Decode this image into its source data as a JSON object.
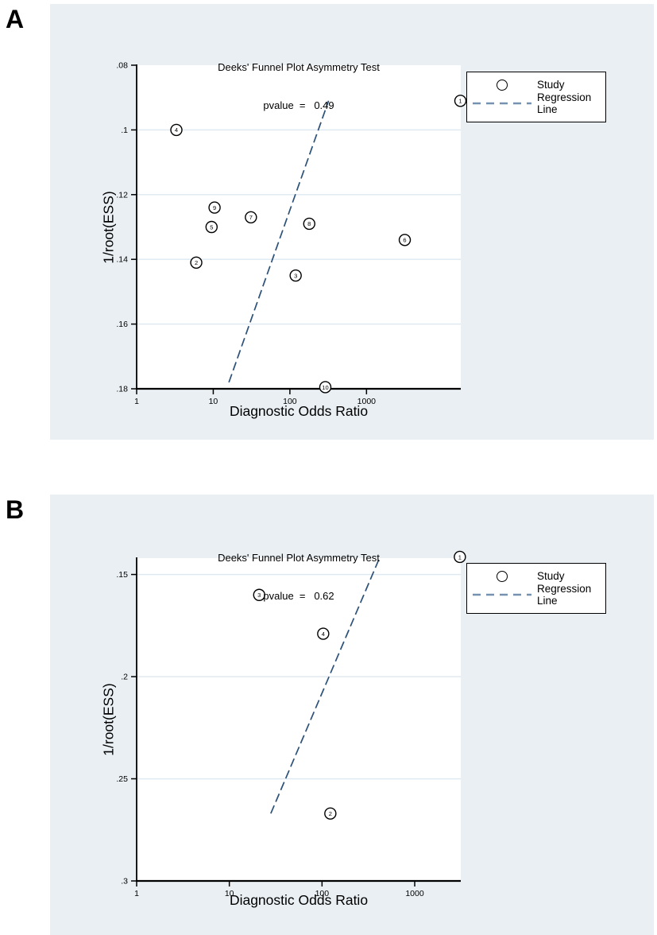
{
  "page": {
    "panel_a_label": "A",
    "panel_b_label": "B"
  },
  "colors": {
    "panel_bg": "#e9eff3",
    "plot_bg": "#ffffff",
    "grid": "#dde8f0",
    "axis": "#000000",
    "regression_line": "#2c5178",
    "legend_dash": "#7593b1"
  },
  "chart_data": [
    {
      "id": "A",
      "type": "scatter",
      "title": "Deeks' Funnel Plot Asymmetry Test",
      "subtitle": "pvalue  =   0.49",
      "pvalue": 0.49,
      "xlabel": "Diagnostic Odds Ratio",
      "ylabel": "1/root(ESS)",
      "x_scale": "log",
      "x_range": [
        1,
        17000
      ],
      "x_ticks": [
        {
          "v": 1,
          "label": "1"
        },
        {
          "v": 10,
          "label": "10"
        },
        {
          "v": 100,
          "label": "100"
        },
        {
          "v": 1000,
          "label": "1000"
        }
      ],
      "y_axis_top_to_bottom": true,
      "y_range": [
        0.08,
        0.18
      ],
      "y_ticks": [
        {
          "v": 0.08,
          "label": ".08",
          "grid": false
        },
        {
          "v": 0.1,
          "label": ".1",
          "grid": true
        },
        {
          "v": 0.12,
          "label": ".12",
          "grid": true
        },
        {
          "v": 0.14,
          "label": ".14",
          "grid": true
        },
        {
          "v": 0.16,
          "label": ".16",
          "grid": true
        },
        {
          "v": 0.18,
          "label": ".18",
          "grid": false
        }
      ],
      "points": [
        {
          "label": "1",
          "x": 16800,
          "y": 0.091
        },
        {
          "label": "2",
          "x": 6,
          "y": 0.141
        },
        {
          "label": "3",
          "x": 119,
          "y": 0.145
        },
        {
          "label": "4",
          "x": 3.3,
          "y": 0.1
        },
        {
          "label": "5",
          "x": 9.5,
          "y": 0.13
        },
        {
          "label": "6",
          "x": 3160,
          "y": 0.134
        },
        {
          "label": "7",
          "x": 31,
          "y": 0.127
        },
        {
          "label": "8",
          "x": 179,
          "y": 0.129
        },
        {
          "label": "9",
          "x": 10.4,
          "y": 0.124
        },
        {
          "label": "10",
          "x": 290,
          "y": 0.1795
        }
      ],
      "regression_line": {
        "x1": 16,
        "y1": 0.178,
        "x2": 320,
        "y2": 0.091
      },
      "legend": {
        "study": "Study",
        "regression": "Regression Line"
      }
    },
    {
      "id": "B",
      "type": "scatter",
      "title": "Deeks' Funnel Plot Asymmetry Test",
      "subtitle": "pvalue  =   0.62",
      "pvalue": 0.62,
      "xlabel": "Diagnostic Odds Ratio",
      "ylabel": "1/root(ESS)",
      "x_scale": "log",
      "x_range": [
        1,
        3140
      ],
      "x_ticks": [
        {
          "v": 1,
          "label": "1"
        },
        {
          "v": 10,
          "label": "10"
        },
        {
          "v": 100,
          "label": "100"
        },
        {
          "v": 1000,
          "label": "1000"
        }
      ],
      "y_axis_top_to_bottom": true,
      "y_range": [
        0.142,
        0.3
      ],
      "y_ticks": [
        {
          "v": 0.15,
          "label": ".15",
          "grid": true
        },
        {
          "v": 0.2,
          "label": ".2",
          "grid": true
        },
        {
          "v": 0.25,
          "label": ".25",
          "grid": true
        },
        {
          "v": 0.3,
          "label": ".3",
          "grid": false
        }
      ],
      "points": [
        {
          "label": "1",
          "x": 3070,
          "y": 0.1414
        },
        {
          "label": "2",
          "x": 123,
          "y": 0.267
        },
        {
          "label": "3",
          "x": 21,
          "y": 0.16
        },
        {
          "label": "4",
          "x": 103,
          "y": 0.179
        }
      ],
      "regression_line": {
        "x1": 28,
        "y1": 0.267,
        "x2": 420,
        "y2": 0.1416
      },
      "legend": {
        "study": "Study",
        "regression": "Regression Line"
      }
    }
  ]
}
